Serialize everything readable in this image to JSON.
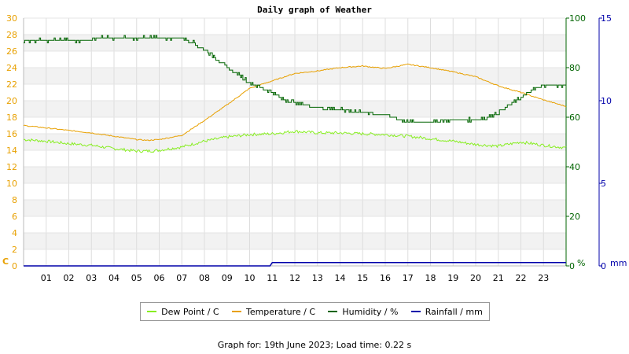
{
  "chart_data": {
    "type": "line",
    "title": "Daily graph of Weather",
    "x_ticks": [
      "01",
      "02",
      "03",
      "04",
      "05",
      "06",
      "07",
      "08",
      "09",
      "10",
      "11",
      "12",
      "13",
      "14",
      "15",
      "16",
      "17",
      "18",
      "19",
      "20",
      "21",
      "22",
      "23"
    ],
    "xlim": [
      0,
      24
    ],
    "axes": {
      "left": {
        "unit": "C",
        "ylim": [
          0,
          30
        ],
        "ticks": [
          0,
          2,
          4,
          6,
          8,
          10,
          12,
          14,
          16,
          18,
          20,
          22,
          24,
          26,
          28,
          30
        ],
        "color": "#e8a000"
      },
      "right1": {
        "unit": "%",
        "ylim": [
          0,
          100
        ],
        "ticks": [
          0,
          20,
          40,
          60,
          80,
          100
        ],
        "color": "#006400"
      },
      "right2": {
        "unit": "mm",
        "ylim": [
          0,
          15
        ],
        "ticks": [
          0,
          5,
          10,
          15
        ],
        "color": "#0000aa"
      }
    },
    "series": [
      {
        "name": "Dew Point / C",
        "axis": "left",
        "color": "#88ee22",
        "x": [
          0,
          1,
          2,
          3,
          4,
          5,
          5.5,
          6,
          7,
          8,
          9,
          10,
          11,
          12,
          13,
          14,
          15,
          16,
          17,
          18,
          19,
          20,
          21,
          22,
          23,
          24
        ],
        "y": [
          15.3,
          15.1,
          14.8,
          14.6,
          14.2,
          13.9,
          13.9,
          14.0,
          14.4,
          15.1,
          15.6,
          15.9,
          16.0,
          16.3,
          16.1,
          16.1,
          16.0,
          15.9,
          15.7,
          15.4,
          15.1,
          14.7,
          14.5,
          15.0,
          14.6,
          14.3
        ]
      },
      {
        "name": "Temperature / C",
        "axis": "left",
        "color": "#e8a000",
        "x": [
          0,
          1,
          2,
          3,
          4,
          5,
          5.5,
          6,
          7,
          8,
          9,
          10,
          11,
          12,
          13,
          14,
          15,
          16,
          17,
          18,
          19,
          20,
          21,
          22,
          23,
          24
        ],
        "y": [
          17.0,
          16.7,
          16.4,
          16.1,
          15.7,
          15.3,
          15.2,
          15.3,
          15.8,
          17.6,
          19.5,
          21.5,
          22.4,
          23.3,
          23.6,
          24.0,
          24.2,
          23.9,
          24.4,
          24.0,
          23.5,
          22.9,
          21.8,
          21.0,
          20.1,
          19.3
        ]
      },
      {
        "name": "Humidity / %",
        "axis": "right1",
        "color": "#006400",
        "x": [
          0,
          0.2,
          3.0,
          3.3,
          7.0,
          7.5,
          8.0,
          8.5,
          9.0,
          9.5,
          10.0,
          10.5,
          11.0,
          11.5,
          12.0,
          12.5,
          13.0,
          14.0,
          15.0,
          16.0,
          17.0,
          18.0,
          19.0,
          20.0,
          20.5,
          21.0,
          21.5,
          22.0,
          22.5,
          23.0,
          24.0
        ],
        "y": [
          90,
          91,
          91,
          92,
          92,
          90,
          87,
          84,
          80,
          77,
          74,
          72,
          70,
          67,
          66,
          65,
          64,
          63,
          62,
          61,
          58,
          58,
          59,
          59,
          60,
          62,
          65,
          68,
          71,
          73,
          73
        ]
      },
      {
        "name": "Rainfall / mm",
        "axis": "right2",
        "color": "#0000aa",
        "x": [
          0,
          10.9,
          11.0,
          24
        ],
        "y": [
          0,
          0,
          0.2,
          0.2
        ]
      }
    ],
    "grid": true,
    "legend_position": "bottom"
  },
  "footer": "Graph for: 19th June 2023; Load time: 0.22 s"
}
